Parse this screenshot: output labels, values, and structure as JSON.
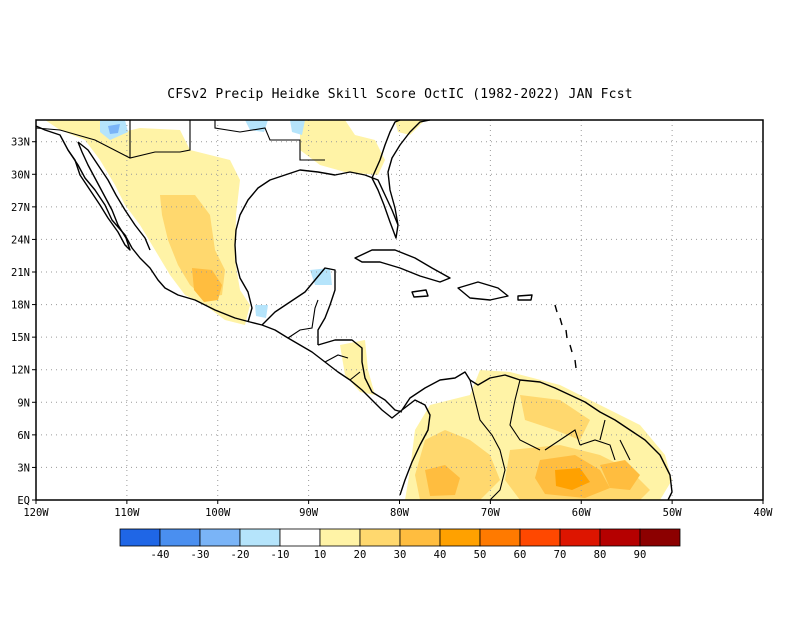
{
  "title": "CFSv2 Precip Heidke Skill Score OctIC (1982-2022) JAN Fcst",
  "lat_labels": [
    "33N",
    "30N",
    "27N",
    "24N",
    "21N",
    "18N",
    "15N",
    "12N",
    "9N",
    "6N",
    "3N",
    "EQ"
  ],
  "lon_labels": [
    "120W",
    "110W",
    "100W",
    "90W",
    "80W",
    "70W",
    "60W",
    "50W",
    "40W"
  ],
  "colorbar": {
    "labels": [
      "-40",
      "-30",
      "-20",
      "-10",
      "10",
      "20",
      "30",
      "40",
      "50",
      "60",
      "70",
      "80",
      "90"
    ],
    "colors": [
      "#1f66e6",
      "#4a8ff0",
      "#7ab4f7",
      "#b5e4fb",
      "#ffffff",
      "#fff3a6",
      "#ffd86e",
      "#ffbd3f",
      "#ffa100",
      "#ff7a00",
      "#ff4800",
      "#dd1500",
      "#b50000",
      "#8c0000"
    ]
  },
  "skill_colors": {
    "s10": "#fff3a6",
    "s20": "#ffd86e",
    "s30": "#ffbd3f",
    "s40": "#ffa100",
    "neg10": "#b5e4fb",
    "neg20": "#7ab4f7"
  }
}
